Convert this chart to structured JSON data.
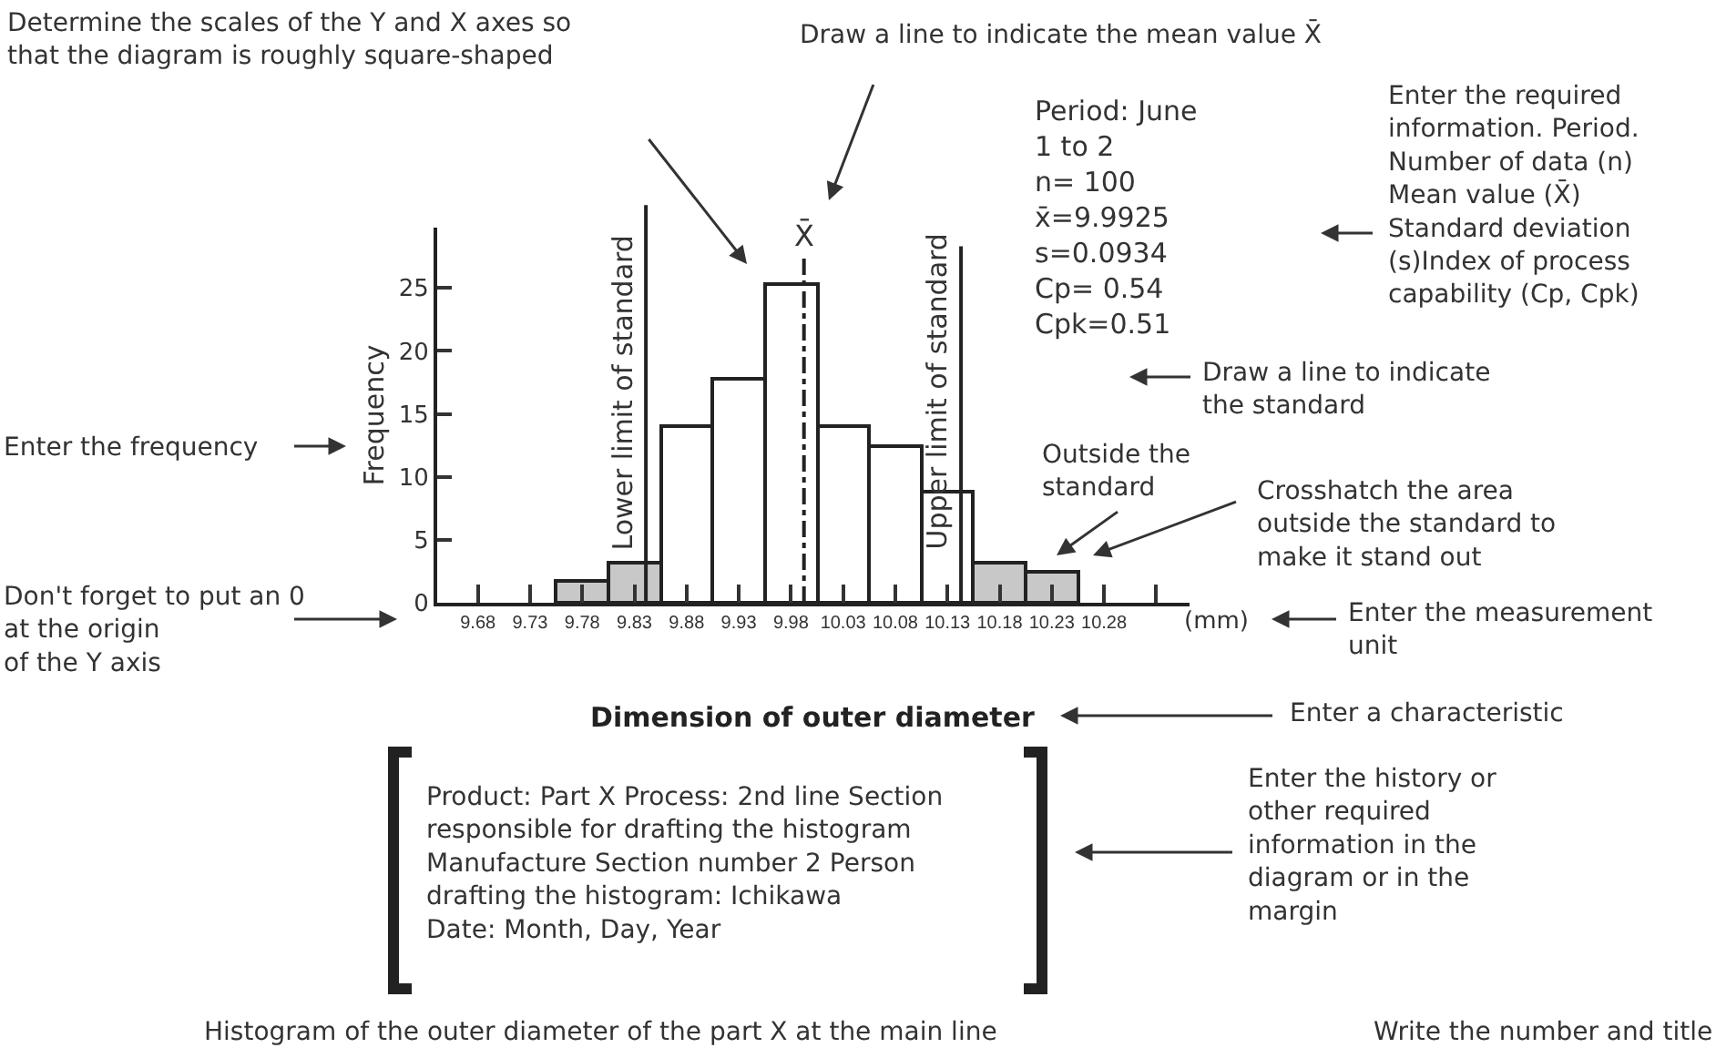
{
  "chart_data": {
    "type": "histogram",
    "bins": [
      9.755,
      9.805,
      9.855,
      9.905,
      9.955,
      10.005,
      10.055,
      10.105,
      10.155,
      10.205,
      10.255
    ],
    "values": [
      1.8,
      3.2,
      14,
      17.8,
      25.3,
      14,
      12.4,
      8.8,
      3.2,
      2.4
    ],
    "colors": [
      "#c8c8c8",
      "#c8c8c8",
      "#ffffff",
      "#ffffff",
      "#ffffff",
      "#ffffff",
      "#ffffff",
      "#ffffff",
      "#c8c8c8",
      "#c8c8c8"
    ],
    "xlim": [
      9.641,
      10.362
    ],
    "xticks": [
      9.68,
      9.73,
      9.78,
      9.83,
      9.88,
      9.93,
      9.98,
      10.03,
      10.08,
      10.13,
      10.18,
      10.23,
      10.28,
      {
        "value": 10.33,
        "label": null
      }
    ],
    "ylim": [
      0,
      29.8
    ],
    "yticks": [
      0,
      5,
      10,
      15,
      20,
      25
    ],
    "ylabel": "Frequency",
    "xlabel": "Dimension of outer diameter",
    "ref_lines": [
      {
        "axis": "x",
        "value": 9.841,
        "label": "Lower limit of standard",
        "line_style": "solid"
      },
      {
        "axis": "x",
        "value": 9.9925,
        "label": "X̄",
        "line_style": "dashdot"
      },
      {
        "axis": "x",
        "value": 10.143,
        "label": "Upper limit of standard",
        "line_style": "solid"
      }
    ],
    "annotations": [
      "Determine the scales of the Y and X axes so\nthat the diagram is roughly square-shaped",
      "Draw a line to indicate the mean value X̄",
      "Period: June\n1 to 2\nn= 100\nx̄=9.9925\ns=0.0934\nCp= 0.54\nCpk=0.51",
      "Enter the required\ninformation. Period.\nNumber of data (n)\nMean value (X̄)\nStandard deviation\n(s)Index of process\ncapability (Cp, Cpk)",
      "Draw a line to indicate\nthe standard",
      "Outside the\nstandard",
      "Crosshatch the area\noutside the standard to\nmake it stand out",
      "Enter the frequency",
      "Don't forget to put an 0\nat the origin\nof the Y axis",
      "Enter the measurement\nunit",
      "(mm)",
      "Enter a characteristic",
      "Product: Part X Process: 2nd line Section\nresponsible for drafting the histogram\nManufacture Section number 2 Person\ndrafting the histogram: Ichikawa\nDate: Month, Day, Year",
      "Enter the history or\nother required\ninformation in the\ndiagram or in the\nmargin",
      "Write the number and title",
      "Histogram of the outer diameter of the part X at the main line"
    ]
  }
}
